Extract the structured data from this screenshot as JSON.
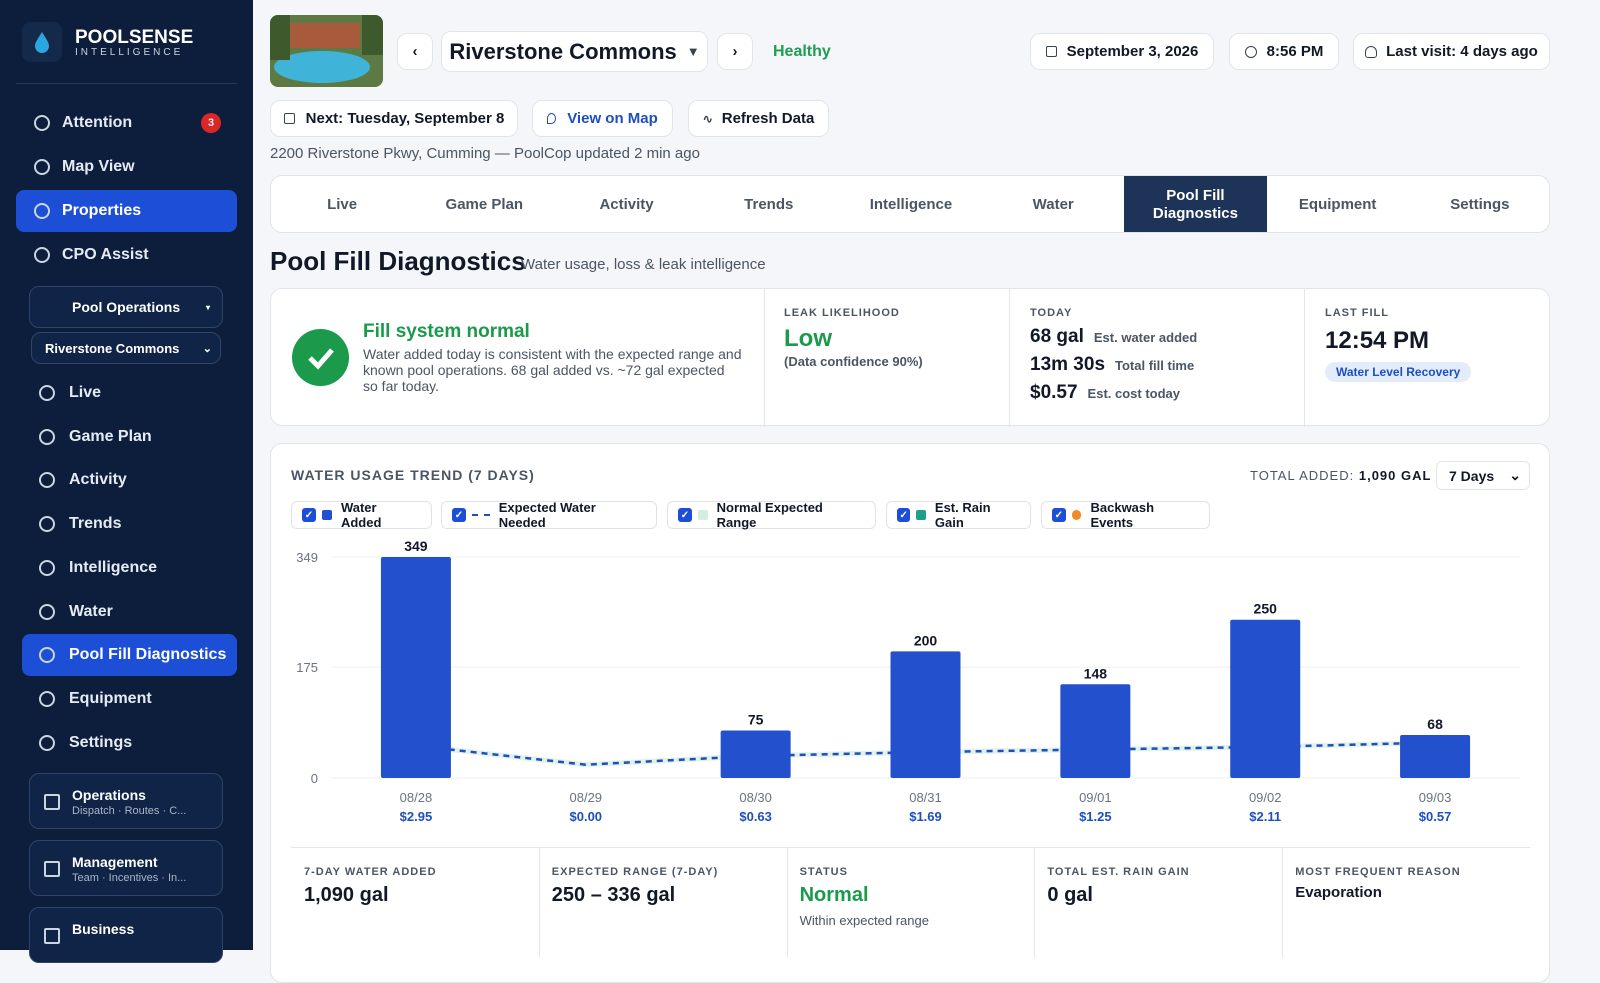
{
  "sidebar": {
    "brand": "POOLSENSE",
    "tagline": "INTELLIGENCE",
    "nav": [
      {
        "label": "Attention",
        "badge": 3
      },
      {
        "label": "Map View"
      },
      {
        "label": "Properties"
      },
      {
        "label": "CPO Assist"
      }
    ],
    "nav_active": 2,
    "pool_operations": "Pool Operations",
    "property_select": "Riverstone Commons",
    "sub_nav": [
      "Live",
      "Game Plan",
      "Activity",
      "Trends",
      "Intelligence",
      "Water",
      "Pool Fill Diagnostics",
      "Equipment",
      "Settings"
    ],
    "sub_nav_active": 6,
    "groups": [
      {
        "title": "Operations",
        "subtitle": "Dispatch · Routes · C..."
      },
      {
        "title": "Management",
        "subtitle": "Team · Incentives · In..."
      },
      {
        "title": "Business"
      }
    ]
  },
  "header": {
    "property": "Riverstone Commons",
    "status": "Healthy",
    "date": "September 3, 2026",
    "time": "8:56 PM",
    "last_visit": "Last visit: 4 days ago",
    "buttons": [
      "Next: Tuesday, September 8",
      "View on Map",
      "Refresh Data"
    ],
    "address": "2200 Riverstone Pkwy, Cumming — PoolCop updated 2 min ago"
  },
  "tabs": {
    "items": [
      "Live",
      "Game Plan",
      "Activity",
      "Trends",
      "Intelligence",
      "Water",
      "Pool Fill Diagnostics",
      "Equipment",
      "Settings"
    ],
    "active": 6
  },
  "page": {
    "title": "Pool Fill Diagnostics",
    "subtitle": "Water usage, loss & leak intelligence"
  },
  "summary": {
    "status_title": "Fill system normal",
    "status_text": "Water added today is consistent with the expected range and known pool operations. 68 gal added vs. ~72 gal expected so far today.",
    "leak": {
      "label": "LEAK LIKELIHOOD",
      "value": "Low",
      "note": "(Data confidence 90%)"
    },
    "today": {
      "label": "TODAY",
      "rows": [
        {
          "value": "68 gal",
          "label": "Est. water added"
        },
        {
          "value": "13m 30s",
          "label": "Total fill time"
        },
        {
          "value": "$0.57",
          "label": "Est. cost today"
        }
      ]
    },
    "last_fill": {
      "label": "LAST FILL",
      "value": "12:54 PM",
      "tag": "Water Level Recovery"
    }
  },
  "chart_data": {
    "type": "bar",
    "title": "WATER USAGE TREND (7 DAYS)",
    "total_label": "TOTAL ADDED:",
    "total_value": "1,090 GAL",
    "range_select": "7 Days",
    "categories": [
      "08/28",
      "08/29",
      "08/30",
      "08/31",
      "09/01",
      "09/02",
      "09/03"
    ],
    "cost_labels": [
      "$2.95",
      "$0.00",
      "$0.63",
      "$1.69",
      "$1.25",
      "$2.11",
      "$0.57"
    ],
    "series": [
      {
        "name": "Water Added",
        "color": "#2350cc",
        "values": [
          349,
          null,
          75,
          200,
          148,
          250,
          68
        ]
      },
      {
        "name": "Expected Water Needed",
        "color": "#1f4fbf",
        "values": [
          51,
          21,
          35,
          41,
          45,
          49,
          56
        ]
      },
      {
        "name": "Normal Expected Range",
        "color": "#d3ede0",
        "low": [
          47,
          17,
          31,
          37,
          41,
          45,
          52
        ],
        "high": [
          55,
          25,
          39,
          45,
          49,
          53,
          60
        ]
      },
      {
        "name": "Est. Rain Gain",
        "color": "#1f9e8a",
        "values": [
          null,
          null,
          null,
          null,
          null,
          null,
          null
        ]
      },
      {
        "name": "Backwash Events",
        "color": "#f08a24",
        "values": [
          null,
          null,
          null,
          null,
          null,
          null,
          null
        ]
      }
    ],
    "ylim": [
      0,
      349
    ],
    "yticks": [
      0,
      175,
      349
    ],
    "grid": true
  },
  "stats": [
    {
      "label": "7-DAY WATER ADDED",
      "value": "1,090 gal"
    },
    {
      "label": "EXPECTED RANGE (7-DAY)",
      "value": "250 – 336 gal"
    },
    {
      "label": "STATUS",
      "value": "Normal",
      "note": "Within expected range"
    },
    {
      "label": "TOTAL EST. RAIN GAIN",
      "value": "0 gal"
    },
    {
      "label": "MOST FREQUENT REASON",
      "value": "Evaporation"
    }
  ]
}
